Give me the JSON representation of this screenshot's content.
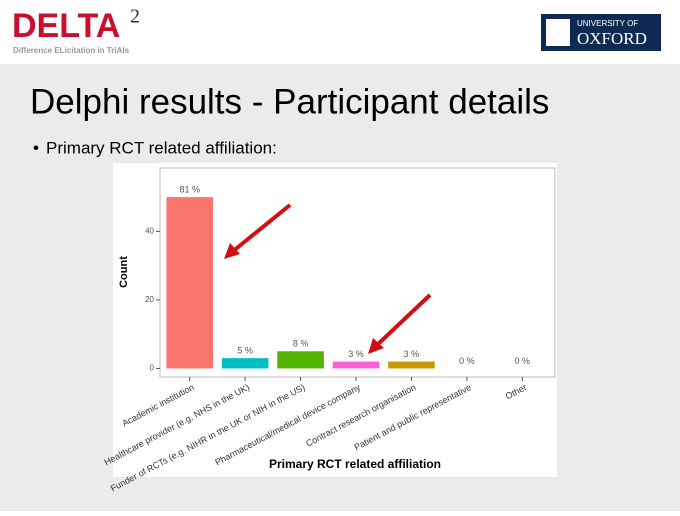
{
  "header": {
    "logo": "DELTA",
    "logo_superscript": "2",
    "logo_tagline": "Difference ELicitation in TriAls",
    "partner_top": "UNIVERSITY OF",
    "partner_bottom": "OXFORD"
  },
  "slide": {
    "title": "Delphi results - Participant details",
    "bullet": "Primary RCT related affiliation:"
  },
  "chart_data": {
    "type": "bar",
    "categories": [
      "Academic institution",
      "Healthcare provider (e.g. NHS in the UK)",
      "Funder of RCTs (e.g. NIHR in the UK or NIH in the US)",
      "Pharmaceutical/medical device company",
      "Contract research organisation",
      "Patient and public representative",
      "Other"
    ],
    "values": [
      50,
      3,
      5,
      2,
      2,
      0,
      0
    ],
    "shares": [
      81,
      5,
      8,
      3,
      3,
      0,
      0
    ],
    "share_labels": [
      "81 %",
      "5 %",
      "8 %",
      "3 %",
      "3 %",
      "0 %",
      "0 %"
    ],
    "colors": [
      "#f8766d",
      "#00bfc4",
      "#53b400",
      "#fb61d7",
      "#c49a00",
      "#00b6eb",
      "#a58aff"
    ],
    "xlabel": "Primary RCT related affiliation",
    "ylabel": "Count",
    "ylim": [
      -2.5,
      58.5
    ],
    "yticks": [
      0,
      20,
      40
    ],
    "grid": false
  }
}
